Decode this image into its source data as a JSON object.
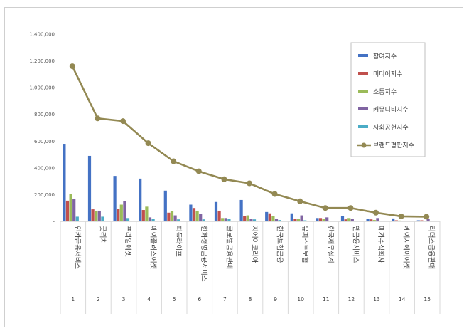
{
  "chart_data": {
    "type": "bar",
    "title": "",
    "xlabel": "",
    "ylabel": "",
    "ylim": [
      0,
      1400000
    ],
    "yticks": [
      0,
      200000,
      400000,
      600000,
      800000,
      1000000,
      1200000,
      1400000
    ],
    "ytick_labels": [
      "-",
      "200,000",
      "400,000",
      "600,000",
      "800,000",
      "1,000,000",
      "1,200,000",
      "1,400,000"
    ],
    "categories": [
      "인카금융서비스",
      "굿리치",
      "프라임에셋",
      "에이플러스에셋",
      "피플라이프",
      "한화생명금융서비스",
      "글로벌금융판매",
      "지에이코리아",
      "한국보험금융",
      "유퍼스트보험",
      "한국재무설계",
      "엠금융서비스",
      "메가주식회사",
      "케이지에이에셋",
      "리더스금융판매"
    ],
    "ranks": [
      "1",
      "2",
      "3",
      "4",
      "5",
      "6",
      "7",
      "8",
      "9",
      "10",
      "11",
      "12",
      "13",
      "14",
      "15"
    ],
    "grid": false,
    "legend_position": "right",
    "series": [
      {
        "name": "참여지수",
        "kind": "bar",
        "color": "#4472C4",
        "values": [
          580000,
          490000,
          340000,
          320000,
          230000,
          125000,
          145000,
          160000,
          70000,
          60000,
          25000,
          40000,
          20000,
          22000,
          8000
        ]
      },
      {
        "name": "미디어지수",
        "kind": "bar",
        "color": "#C0504D",
        "values": [
          155000,
          90000,
          95000,
          85000,
          65000,
          100000,
          80000,
          40000,
          60000,
          20000,
          25000,
          15000,
          15000,
          8000,
          8000
        ]
      },
      {
        "name": "소통지수",
        "kind": "bar",
        "color": "#9BBB59",
        "values": [
          205000,
          75000,
          125000,
          110000,
          75000,
          80000,
          25000,
          45000,
          40000,
          20000,
          20000,
          25000,
          10000,
          6000,
          5000
        ]
      },
      {
        "name": "커뮤니티지수",
        "kind": "bar",
        "color": "#8064A2",
        "values": [
          165000,
          80000,
          150000,
          30000,
          45000,
          55000,
          25000,
          20000,
          20000,
          45000,
          30000,
          20000,
          25000,
          5000,
          18000
        ]
      },
      {
        "name": "사회공헌지수",
        "kind": "bar",
        "color": "#4BACC6",
        "values": [
          35000,
          35000,
          25000,
          20000,
          15000,
          15000,
          18000,
          15000,
          10000,
          8000,
          3000,
          5000,
          5000,
          3000,
          4000
        ]
      },
      {
        "name": "브랜드평판지수",
        "kind": "line",
        "color": "#938953",
        "values": [
          1160000,
          770000,
          750000,
          585000,
          450000,
          375000,
          315000,
          285000,
          205000,
          150000,
          100000,
          100000,
          65000,
          38000,
          35000
        ]
      }
    ]
  }
}
